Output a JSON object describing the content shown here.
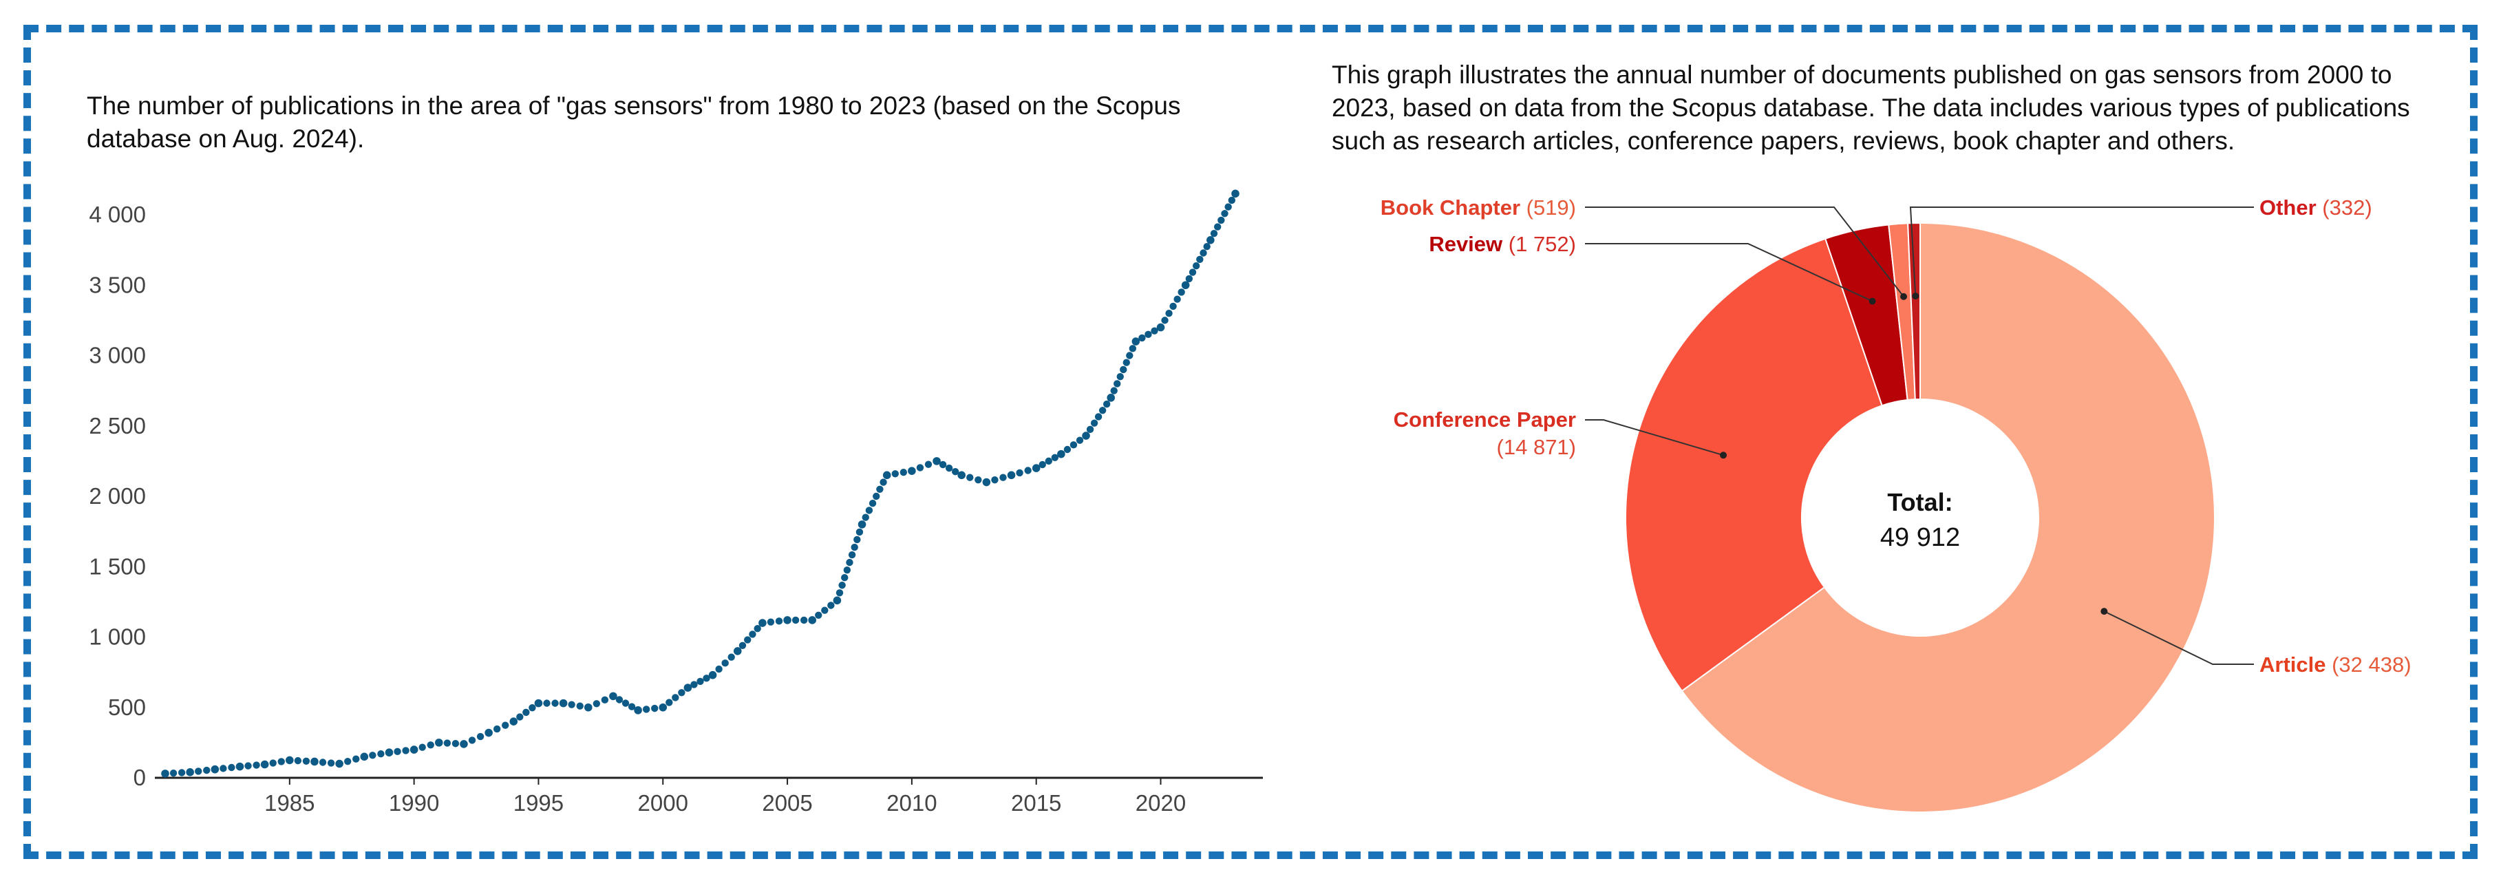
{
  "line_description": "The number of publications in the area of \"gas sensors\" from 1980 to 2023 (based on the Scopus database on Aug. 2024).",
  "donut_description": "This graph illustrates the annual number of documents published on gas sensors from 2000 to 2023, based on data from the Scopus database. The data includes various types of publications such as research articles, conference papers, reviews, book chapter and others.",
  "colors": {
    "frame": "#1a73b9",
    "line": "#0e5a87"
  },
  "chart_data": [
    {
      "type": "line",
      "title": "",
      "xlabel": "",
      "ylabel": "",
      "xlim": [
        1980,
        2023
      ],
      "ylim": [
        0,
        4000
      ],
      "x_ticks": [
        {
          "value": 1985,
          "label": "1985"
        },
        {
          "value": 1990,
          "label": "1990"
        },
        {
          "value": 1995,
          "label": "1995"
        },
        {
          "value": 2000,
          "label": "2000"
        },
        {
          "value": 2005,
          "label": "2005"
        },
        {
          "value": 2010,
          "label": "2010"
        },
        {
          "value": 2015,
          "label": "2015"
        },
        {
          "value": 2020,
          "label": "2020"
        }
      ],
      "y_ticks": [
        {
          "value": 0,
          "label": "0"
        },
        {
          "value": 500,
          "label": "500"
        },
        {
          "value": 1000,
          "label": "1 000"
        },
        {
          "value": 1500,
          "label": "1 500"
        },
        {
          "value": 2000,
          "label": "2 000"
        },
        {
          "value": 2500,
          "label": "2 500"
        },
        {
          "value": 3000,
          "label": "3 000"
        },
        {
          "value": 3500,
          "label": "3 500"
        },
        {
          "value": 4000,
          "label": "4 000"
        }
      ],
      "style": "dotted",
      "color": "#0e5a87",
      "x": [
        1980,
        1981,
        1982,
        1983,
        1984,
        1985,
        1986,
        1987,
        1988,
        1989,
        1990,
        1991,
        1992,
        1993,
        1994,
        1995,
        1996,
        1997,
        1998,
        1999,
        2000,
        2001,
        2002,
        2003,
        2004,
        2005,
        2006,
        2007,
        2008,
        2009,
        2010,
        2011,
        2012,
        2013,
        2014,
        2015,
        2016,
        2017,
        2018,
        2019,
        2020,
        2021,
        2022,
        2023
      ],
      "values": [
        30,
        40,
        60,
        80,
        95,
        125,
        115,
        100,
        150,
        180,
        200,
        250,
        240,
        320,
        400,
        530,
        530,
        500,
        580,
        480,
        500,
        640,
        730,
        900,
        1100,
        1120,
        1120,
        1260,
        1800,
        2150,
        2180,
        2250,
        2150,
        2100,
        2150,
        2200,
        2300,
        2430,
        2700,
        3100,
        3200,
        3500,
        3820,
        4150
      ]
    },
    {
      "type": "pie",
      "variant": "donut",
      "center_label": "Total:",
      "center_value": "49 912",
      "slices": [
        {
          "name": "Article",
          "value": 32438,
          "display": "(32 438)",
          "color": "#fca98a",
          "label_color": "#e5401f",
          "value_color": "#e65b3a"
        },
        {
          "name": "Conference Paper",
          "value": 14871,
          "display": "(14 871)",
          "color": "#f9533e",
          "label_color": "#d92e22",
          "value_color": "#e04a36"
        },
        {
          "name": "Review",
          "value": 1752,
          "display": "(1 752)",
          "color": "#b70308",
          "label_color": "#b70308",
          "value_color": "#d32d26"
        },
        {
          "name": "Book Chapter",
          "value": 519,
          "display": "(519)",
          "color": "#fb7a5e",
          "label_color": "#e0402a",
          "value_color": "#e65b3a"
        },
        {
          "name": "Other",
          "value": 332,
          "display": "(332)",
          "color": "#c31b1b",
          "label_color": "#d01c1c",
          "value_color": "#e04a36"
        }
      ]
    }
  ]
}
